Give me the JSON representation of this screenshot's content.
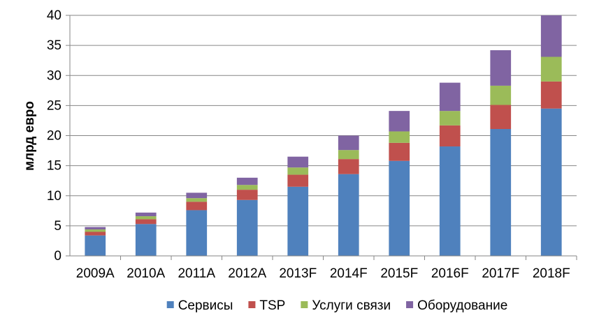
{
  "chart_data": {
    "type": "bar",
    "stacked": true,
    "title": "",
    "xlabel": "",
    "ylabel": "млрд евро",
    "ylim": [
      0,
      40
    ],
    "yticks": [
      0,
      5,
      10,
      15,
      20,
      25,
      30,
      35,
      40
    ],
    "grid": true,
    "legend_position": "bottom",
    "categories": [
      "2009A",
      "2010A",
      "2011A",
      "2012A",
      "2013F",
      "2014F",
      "2015F",
      "2016F",
      "2017F",
      "2018F"
    ],
    "series": [
      {
        "name": "Сервисы",
        "color": "#4f81bd",
        "values": [
          3.4,
          5.3,
          7.6,
          9.3,
          11.5,
          13.6,
          15.8,
          18.2,
          21.1,
          24.5
        ]
      },
      {
        "name": "TSP",
        "color": "#c0504d",
        "values": [
          0.6,
          0.8,
          1.4,
          1.7,
          2.0,
          2.5,
          3.0,
          3.5,
          4.0,
          4.5
        ]
      },
      {
        "name": "Услуги связи",
        "color": "#9bbb59",
        "values": [
          0.4,
          0.5,
          0.6,
          0.8,
          1.2,
          1.5,
          1.9,
          2.4,
          3.2,
          4.1
        ]
      },
      {
        "name": "Оборудование",
        "color": "#8064a2",
        "values": [
          0.4,
          0.6,
          0.9,
          1.2,
          1.8,
          2.4,
          3.4,
          4.7,
          5.9,
          6.9
        ]
      }
    ]
  }
}
